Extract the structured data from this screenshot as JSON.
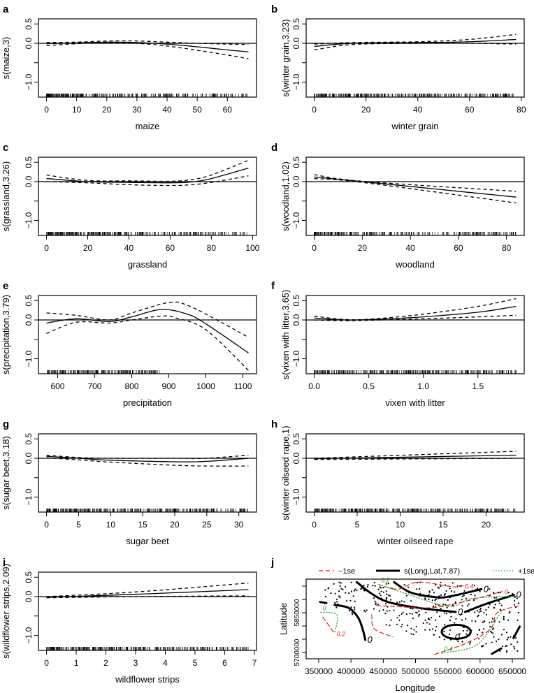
{
  "chart_data": [
    {
      "type": "line",
      "panel": "a",
      "xlabel": "maize",
      "ylabel": "s(maize,3)",
      "xticks": [
        0,
        10,
        20,
        30,
        40,
        50,
        60
      ],
      "ytick_values": [
        -1,
        -0.5,
        0,
        0.5
      ],
      "ytick_labels": [
        "−1.0",
        "",
        "0.0",
        "0.5"
      ],
      "fit": [
        [
          0,
          -0.01
        ],
        [
          10,
          0.01
        ],
        [
          20,
          0.03
        ],
        [
          30,
          0.02
        ],
        [
          40,
          -0.02
        ],
        [
          50,
          -0.09
        ],
        [
          60,
          -0.17
        ],
        [
          67,
          -0.22
        ]
      ],
      "upper": [
        [
          0,
          0.02
        ],
        [
          10,
          0.03
        ],
        [
          20,
          0.06
        ],
        [
          30,
          0.06
        ],
        [
          40,
          0.03
        ],
        [
          50,
          0.0
        ],
        [
          60,
          -0.02
        ],
        [
          67,
          -0.03
        ]
      ],
      "lower": [
        [
          0,
          -0.06
        ],
        [
          10,
          -0.01
        ],
        [
          20,
          0.02
        ],
        [
          30,
          0.0
        ],
        [
          40,
          -0.07
        ],
        [
          50,
          -0.18
        ],
        [
          60,
          -0.3
        ],
        [
          67,
          -0.4
        ]
      ],
      "rug": {
        "min": 0,
        "max": 67,
        "n": 320,
        "skew": 1.6
      }
    },
    {
      "type": "line",
      "panel": "b",
      "xlabel": "winter grain",
      "ylabel": "s(winter grain,3.23)",
      "xticks": [
        0,
        20,
        40,
        60,
        80
      ],
      "ytick_values": [
        -1,
        -0.5,
        0,
        0.5
      ],
      "ytick_labels": [
        "−1.0",
        "",
        "0.0",
        "0.5"
      ],
      "fit": [
        [
          0,
          -0.08
        ],
        [
          15,
          0.0
        ],
        [
          40,
          0.02
        ],
        [
          60,
          0.04
        ],
        [
          78,
          0.1
        ]
      ],
      "upper": [
        [
          0,
          -0.02
        ],
        [
          15,
          0.02
        ],
        [
          40,
          0.04
        ],
        [
          60,
          0.1
        ],
        [
          78,
          0.23
        ]
      ],
      "lower": [
        [
          0,
          -0.17
        ],
        [
          15,
          -0.03
        ],
        [
          40,
          0.0
        ],
        [
          60,
          0.0
        ],
        [
          78,
          -0.02
        ]
      ],
      "rug": {
        "min": 0,
        "max": 78,
        "n": 320,
        "skew": 1.3
      }
    },
    {
      "type": "line",
      "panel": "c",
      "xlabel": "grassland",
      "ylabel": "s(grassland,3.26)",
      "xticks": [
        0,
        20,
        40,
        60,
        80,
        100
      ],
      "ytick_values": [
        -1,
        -0.5,
        0,
        0.5
      ],
      "ytick_labels": [
        "−1.0",
        "",
        "0.0",
        "0.5"
      ],
      "fit": [
        [
          0,
          0.08
        ],
        [
          20,
          0.0
        ],
        [
          40,
          -0.02
        ],
        [
          60,
          -0.03
        ],
        [
          70,
          -0.01
        ],
        [
          80,
          0.08
        ],
        [
          98,
          0.35
        ]
      ],
      "upper": [
        [
          0,
          0.17
        ],
        [
          20,
          0.03
        ],
        [
          40,
          0.02
        ],
        [
          60,
          0.01
        ],
        [
          70,
          0.05
        ],
        [
          80,
          0.17
        ],
        [
          98,
          0.55
        ]
      ],
      "lower": [
        [
          0,
          0.0
        ],
        [
          20,
          -0.03
        ],
        [
          40,
          -0.08
        ],
        [
          60,
          -0.1
        ],
        [
          70,
          -0.08
        ],
        [
          80,
          -0.02
        ],
        [
          98,
          0.15
        ]
      ],
      "rug": {
        "min": 0,
        "max": 98,
        "n": 320,
        "skew": 1.4
      }
    },
    {
      "type": "line",
      "panel": "d",
      "xlabel": "woodland",
      "ylabel": "s(woodland,1.02)",
      "xticks": [
        0,
        20,
        40,
        60,
        80
      ],
      "ytick_values": [
        -1,
        -0.5,
        0,
        0.5
      ],
      "ytick_labels": [
        "−1.0",
        "",
        "0.0",
        "0.5"
      ],
      "fit": [
        [
          0,
          0.12
        ],
        [
          20,
          0.0
        ],
        [
          84,
          -0.4
        ]
      ],
      "upper": [
        [
          0,
          0.18
        ],
        [
          20,
          0.01
        ],
        [
          84,
          -0.25
        ]
      ],
      "lower": [
        [
          0,
          0.08
        ],
        [
          20,
          -0.02
        ],
        [
          84,
          -0.55
        ]
      ],
      "rug": {
        "min": 0,
        "max": 84,
        "n": 280,
        "skew": 1.8
      }
    },
    {
      "type": "line",
      "panel": "e",
      "xlabel": "precipitation",
      "ylabel": "s(precipitation,3.79)",
      "xticks": [
        600,
        700,
        800,
        900,
        1000,
        1100
      ],
      "ytick_values": [
        -1,
        -0.5,
        0,
        0.5
      ],
      "ytick_labels": [
        "−1.0",
        "",
        "0.0",
        "0.5"
      ],
      "fit": [
        [
          570,
          -0.08
        ],
        [
          650,
          0.03
        ],
        [
          740,
          -0.04
        ],
        [
          800,
          0.08
        ],
        [
          880,
          0.27
        ],
        [
          950,
          0.15
        ],
        [
          1000,
          -0.1
        ],
        [
          1115,
          -0.85
        ]
      ],
      "upper": [
        [
          570,
          0.18
        ],
        [
          650,
          0.12
        ],
        [
          740,
          0.0
        ],
        [
          800,
          0.18
        ],
        [
          900,
          0.45
        ],
        [
          950,
          0.38
        ],
        [
          1030,
          0.0
        ],
        [
          1115,
          -0.45
        ]
      ],
      "lower": [
        [
          570,
          -0.35
        ],
        [
          650,
          -0.06
        ],
        [
          740,
          -0.08
        ],
        [
          800,
          0.0
        ],
        [
          880,
          0.1
        ],
        [
          920,
          0.05
        ],
        [
          1000,
          -0.25
        ],
        [
          1115,
          -1.3
        ]
      ],
      "rug": {
        "min": 570,
        "max": 875,
        "n": 200,
        "skew": 1.0
      }
    },
    {
      "type": "line",
      "panel": "f",
      "xlabel": "vixen with litter",
      "ylabel": "s(vixen with litter,3.65)",
      "xticks": [
        0.0,
        0.5,
        1.0,
        1.5
      ],
      "xtick_labels": [
        "0.0",
        "0.5",
        "1.0",
        "1.5"
      ],
      "ytick_values": [
        -1,
        -0.5,
        0,
        0.5
      ],
      "ytick_labels": [
        "−1.0",
        "",
        "0.0",
        "0.5"
      ],
      "fit": [
        [
          0,
          0.05
        ],
        [
          0.3,
          0.0
        ],
        [
          0.6,
          0.02
        ],
        [
          1.0,
          0.08
        ],
        [
          1.5,
          0.2
        ],
        [
          1.85,
          0.35
        ]
      ],
      "upper": [
        [
          0,
          0.1
        ],
        [
          0.3,
          0.01
        ],
        [
          0.6,
          0.04
        ],
        [
          1.0,
          0.15
        ],
        [
          1.5,
          0.35
        ],
        [
          1.85,
          0.55
        ]
      ],
      "lower": [
        [
          0,
          0.0
        ],
        [
          0.3,
          -0.02
        ],
        [
          0.6,
          0.0
        ],
        [
          1.0,
          0.03
        ],
        [
          1.5,
          0.08
        ],
        [
          1.85,
          0.12
        ]
      ],
      "rug": {
        "min": 0,
        "max": 1.85,
        "n": 300,
        "skew": 1.2
      }
    },
    {
      "type": "line",
      "panel": "g",
      "xlabel": "sugar beet",
      "ylabel": "s(sugar beet,3.18)",
      "xticks": [
        0,
        5,
        10,
        15,
        20,
        25,
        30
      ],
      "ytick_values": [
        -1,
        -0.5,
        0,
        0.5
      ],
      "ytick_labels": [
        "−1.0",
        "",
        "0.0",
        "0.5"
      ],
      "fit": [
        [
          0,
          0.05
        ],
        [
          5,
          0.0
        ],
        [
          10,
          -0.05
        ],
        [
          20,
          -0.09
        ],
        [
          25,
          -0.08
        ],
        [
          31.5,
          0.0
        ]
      ],
      "upper": [
        [
          0,
          0.08
        ],
        [
          5,
          0.02
        ],
        [
          10,
          0.0
        ],
        [
          20,
          0.0
        ],
        [
          25,
          0.0
        ],
        [
          31.5,
          0.08
        ]
      ],
      "lower": [
        [
          0,
          0.01
        ],
        [
          5,
          -0.04
        ],
        [
          10,
          -0.1
        ],
        [
          20,
          -0.18
        ],
        [
          25,
          -0.2
        ],
        [
          31.5,
          -0.2
        ]
      ],
      "rug": {
        "min": 0,
        "max": 31.5,
        "n": 320,
        "skew": 1.3
      }
    },
    {
      "type": "line",
      "panel": "h",
      "xlabel": "winter oilseed rape",
      "ylabel": "s(winter oilseed rape,1)",
      "xticks": [
        0,
        5,
        10,
        15,
        20
      ],
      "ytick_values": [
        -1,
        -0.5,
        0,
        0.5
      ],
      "ytick_labels": [
        "−1.0",
        "",
        "0.0",
        "0.5"
      ],
      "fit": [
        [
          0,
          -0.01
        ],
        [
          23.5,
          0.08
        ]
      ],
      "upper": [
        [
          0,
          0.0
        ],
        [
          23.5,
          0.18
        ]
      ],
      "lower": [
        [
          0,
          -0.03
        ],
        [
          23.5,
          0.0
        ]
      ],
      "rug": {
        "min": 0,
        "max": 23.5,
        "n": 320,
        "skew": 1.3
      }
    },
    {
      "type": "line",
      "panel": "i",
      "xlabel": "wildflower strips",
      "ylabel": "s(wildflower strips,2.09)",
      "xticks": [
        0,
        1,
        2,
        3,
        4,
        5,
        6,
        7
      ],
      "ytick_values": [
        -1,
        -0.5,
        0,
        0.5
      ],
      "ytick_labels": [
        "−1.0",
        "",
        "0.0",
        "0.5"
      ],
      "fit": [
        [
          0,
          -0.02
        ],
        [
          3,
          0.06
        ],
        [
          6.8,
          0.18
        ]
      ],
      "upper": [
        [
          0,
          0.0
        ],
        [
          3,
          0.12
        ],
        [
          6.8,
          0.35
        ]
      ],
      "lower": [
        [
          0,
          -0.03
        ],
        [
          3,
          0.0
        ],
        [
          6.8,
          0.02
        ]
      ],
      "rug": {
        "min": 0,
        "max": 6.8,
        "n": 320,
        "skew": 1.3
      }
    },
    {
      "type": "scatter",
      "panel": "j",
      "xlabel": "Longitude",
      "ylabel": "Latitude",
      "xlim": [
        330500,
        668400
      ],
      "ylim": [
        5676300,
        5976300
      ],
      "xticks": [
        350000,
        400000,
        450000,
        500000,
        550000,
        600000,
        650000
      ],
      "xtick_labels": [
        "350000",
        "400000",
        "450000",
        "500000",
        "550000",
        "600000",
        "650000"
      ],
      "ytick_values": [
        5700000,
        5750000,
        5800000,
        5850000,
        5900000,
        5950000
      ],
      "ytick_labels": [
        "5700000",
        "",
        "",
        "5850000",
        "",
        ""
      ],
      "legend": {
        "position": "top",
        "items": [
          {
            "label": "−1se",
            "color": "#e31a1c",
            "style": "dashed"
          },
          {
            "label": "s(Long,Lat,7.87)",
            "color": "#000000",
            "style": "solid"
          },
          {
            "label": "+1se",
            "color": "#2ca02c",
            "style": "dotted"
          }
        ]
      },
      "n_points": 360,
      "contours": [
        {
          "set": "fit",
          "label": "0",
          "points": [
            [
              408800,
              5965000
            ],
            [
              432300,
              5921000
            ],
            [
              457600,
              5890000
            ],
            [
              504500,
              5868000
            ],
            [
              562300,
              5852600
            ]
          ]
        },
        {
          "set": "fit",
          "label": "0",
          "points": [
            [
              576700,
              5852600
            ],
            [
              612800,
              5886000
            ],
            [
              652500,
              5916600
            ]
          ]
        },
        {
          "set": "fit",
          "label": "0",
          "points": [
            [
              466600,
              5965000
            ],
            [
              493700,
              5925000
            ],
            [
              533400,
              5908000
            ],
            [
              555000,
              5912000
            ],
            [
              602000,
              5938500
            ]
          ]
        },
        {
          "set": "fit",
          "label": "0",
          "points": [
            [
              374500,
              5879000
            ],
            [
              396200,
              5868000
            ],
            [
              410600,
              5833000
            ],
            [
              417900,
              5789500
            ],
            [
              422200,
              5747000
            ]
          ]
        },
        {
          "set": "fit",
          "label": "",
          "points": [
            [
              352200,
              5890300
            ],
            [
              361900,
              5886000
            ]
          ]
        },
        {
          "set": "fit",
          "label": "0",
          "ellipse": [
            563000,
            5778000,
            22400,
            26300
          ]
        },
        {
          "set": "fit",
          "label": "",
          "points": [
            [
              661500,
              5798000
            ],
            [
              651700,
              5754000
            ]
          ]
        },
        {
          "set": "fit",
          "label": "",
          "points": [
            [
              618200,
              5694700
            ],
            [
              632700,
              5714900
            ]
          ]
        },
        {
          "set": "lower",
          "label": "0.4",
          "points": [
            [
              443100,
              5956100
            ],
            [
              472000,
              5938500
            ],
            [
              504500,
              5964900
            ],
            [
              558700,
              5947300
            ],
            [
              573100,
              5951700
            ]
          ]
        },
        {
          "set": "lower",
          "label": "0",
          "points": [
            [
              439500,
              5877200
            ],
            [
              472000,
              5872800
            ],
            [
              522600,
              5868400
            ],
            [
              573100,
              5890300
            ],
            [
              634500,
              5929800
            ]
          ]
        },
        {
          "set": "lower",
          "label": "",
          "points": [
            [
              432300,
              5842100
            ],
            [
              435900,
              5789500
            ],
            [
              464800,
              5758800
            ]
          ]
        },
        {
          "set": "lower",
          "label": "",
          "points": [
            [
              529800,
              5693000
            ],
            [
              580300,
              5736800
            ],
            [
              616400,
              5789500
            ],
            [
              627200,
              5850800
            ],
            [
              663300,
              5877200
            ]
          ]
        },
        {
          "set": "lower",
          "label": "0.2",
          "points": [
            [
              356500,
              5833300
            ],
            [
              374500,
              5771900
            ]
          ]
        },
        {
          "set": "upper",
          "label": "0.2",
          "points": [
            [
              443100,
              5956100
            ],
            [
              486500,
              5921000
            ],
            [
              551400,
              5872800
            ],
            [
              587500,
              5903500
            ],
            [
              656100,
              5912200
            ]
          ]
        },
        {
          "set": "upper",
          "label": "0",
          "points": [
            [
              352900,
              5850800
            ],
            [
              378200,
              5842100
            ],
            [
              374500,
              5771900
            ]
          ]
        },
        {
          "set": "upper",
          "label": "0.4",
          "points": [
            [
              540600,
              5697400
            ],
            [
              594800,
              5728100
            ],
            [
              627200,
              5833300
            ],
            [
              634500,
              5850800
            ]
          ]
        }
      ]
    }
  ],
  "colors": {
    "lower": "#e31a1c",
    "upper": "#2ca02c",
    "fit": "#000000"
  }
}
